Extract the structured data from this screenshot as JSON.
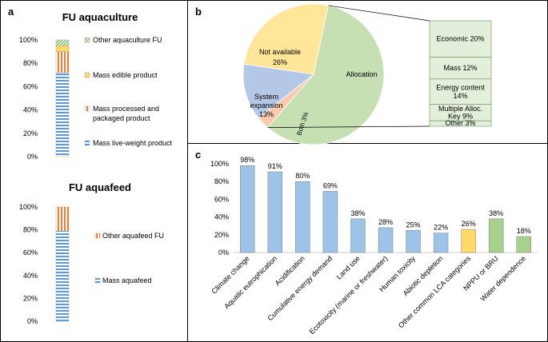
{
  "panel_a": {
    "label": "a",
    "charts": [
      {
        "type": "bar",
        "stacked": true,
        "title": "FU aquaculture",
        "yticks": [
          "0%",
          "20%",
          "40%",
          "60%",
          "80%",
          "100%"
        ],
        "ylim": [
          0,
          100
        ],
        "segments": [
          {
            "name": "Mass live-weight product",
            "value": 72,
            "color": "#5b9bd5",
            "pattern": "hlines"
          },
          {
            "name": "Mass processed and packaged product",
            "value": 18,
            "color": "#ed7d31",
            "pattern": "vlines"
          },
          {
            "name": "Mass edible product",
            "value": 5,
            "color": "#ffd966",
            "pattern": "solid"
          },
          {
            "name": "Other aquaculture FU",
            "value": 5,
            "color": "#70ad47",
            "pattern": "diag"
          }
        ],
        "legend_lines": {
          "other": [
            "Other aquaculture FU"
          ],
          "edible": [
            "Mass edible product"
          ],
          "processed": [
            "Mass processed and",
            "packaged product"
          ],
          "live": [
            "Mass live-weight product"
          ]
        }
      },
      {
        "type": "bar",
        "stacked": true,
        "title": "FU aquafeed",
        "yticks": [
          "0%",
          "20%",
          "40%",
          "60%",
          "80%",
          "100%"
        ],
        "ylim": [
          0,
          100
        ],
        "segments": [
          {
            "name": "Mass aquafeed",
            "value": 79,
            "color": "#5b9bd5",
            "pattern": "hlines"
          },
          {
            "name": "Other aquafeed FU",
            "value": 21,
            "color": "#ed7d31",
            "pattern": "vlines"
          }
        ]
      }
    ]
  },
  "panel_b": {
    "label": "b",
    "pie": {
      "type": "pie",
      "slices": [
        {
          "name": "Allocation",
          "value": 58,
          "color": "#c6e0b4"
        },
        {
          "name": "Both",
          "value": 3,
          "color": "#f8cbad"
        },
        {
          "name": "System expansion",
          "value": 13,
          "color": "#b4c7e7"
        },
        {
          "name": "Not available",
          "value": 26,
          "color": "#ffe699"
        }
      ],
      "labels": {
        "allocation": "Allocation",
        "not_available_1": "Not available",
        "not_available_2": "26%",
        "system_1": "System",
        "system_2": "expansion",
        "system_3": "13%",
        "both": "Both 3%"
      }
    },
    "breakdown": {
      "type": "bar",
      "stacked": true,
      "color": "#e2efda",
      "items": [
        {
          "name": "Economic",
          "value": 20,
          "lines": [
            "Economic 20%"
          ]
        },
        {
          "name": "Mass",
          "value": 12,
          "lines": [
            "Mass 12%"
          ]
        },
        {
          "name": "Energy content",
          "value": 14,
          "lines": [
            "Energy content",
            "14%"
          ]
        },
        {
          "name": "Multiple Alloc. Key",
          "value": 9,
          "lines": [
            "Multiple Alloc.",
            "Key 9%"
          ]
        },
        {
          "name": "Other",
          "value": 3,
          "lines": [
            "Other 3%"
          ]
        }
      ]
    }
  },
  "panel_c": {
    "label": "c",
    "chart_data": {
      "type": "bar",
      "ylim": [
        0,
        100
      ],
      "yticks": [
        "0%",
        "20%",
        "40%",
        "60%",
        "80%",
        "100%"
      ],
      "categories": [
        "Climate change",
        "Aquatic eutrophication",
        "Acidification",
        "Cumulative energy demand",
        "Land use",
        "Ecotoxicity (marine or freshwater)",
        "Human toxicity",
        "Abiotic depletion",
        "Other common LCA categories",
        "NPPU or BRU",
        "Water dependence"
      ],
      "values": [
        98,
        91,
        80,
        69,
        38,
        28,
        25,
        22,
        26,
        38,
        18
      ],
      "labels": [
        "98%",
        "91%",
        "80%",
        "69%",
        "38%",
        "28%",
        "25%",
        "22%",
        "26%",
        "38%",
        "18%"
      ],
      "colors": [
        "#9dc3e6",
        "#9dc3e6",
        "#9dc3e6",
        "#9dc3e6",
        "#9dc3e6",
        "#9dc3e6",
        "#9dc3e6",
        "#9dc3e6",
        "#ffd966",
        "#a9d18e",
        "#a9d18e"
      ]
    }
  }
}
